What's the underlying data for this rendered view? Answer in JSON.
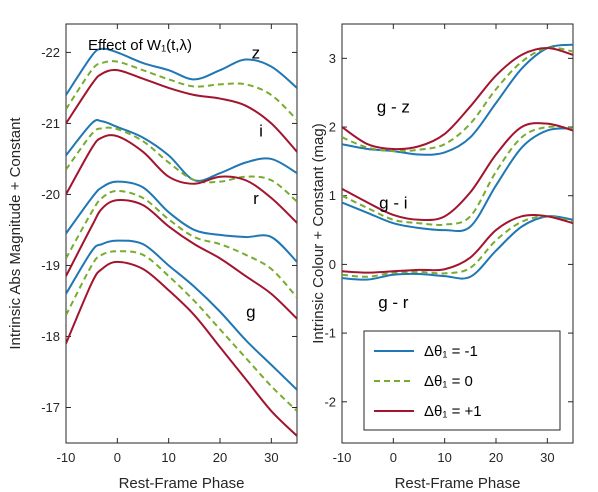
{
  "chart_data": [
    {
      "type": "line",
      "xlabel": "Rest-Frame Phase",
      "ylabel": "Intrinsic Abs Magnitude + Constant",
      "xlim": [
        -10,
        35
      ],
      "ylim": [
        -16.5,
        -22.4
      ],
      "y_reversed": true,
      "xticks": [
        -10,
        0,
        10,
        20,
        30
      ],
      "yticks": [
        -17,
        -18,
        -19,
        -20,
        -21,
        -22
      ],
      "xtick_labels": [
        "-10",
        "0",
        "10",
        "20",
        "30"
      ],
      "ytick_labels": [
        "-17",
        "-18",
        "-19",
        "-20",
        "-21",
        "-22"
      ],
      "annotation": "Effect of W₁(t,λ)",
      "band_labels": [
        {
          "text": "z",
          "x": 27,
          "y": -22.0
        },
        {
          "text": "i",
          "x": 28,
          "y": -20.9
        },
        {
          "text": "r",
          "x": 27,
          "y": -19.95
        },
        {
          "text": "g",
          "x": 26,
          "y": -18.35
        }
      ],
      "x": [
        -10,
        -5,
        -3,
        0,
        5,
        10,
        15,
        20,
        25,
        30,
        35
      ],
      "series": [
        {
          "name": "Δθ₁ = -1",
          "color": "#1f77b4",
          "style": "solid",
          "band": "z",
          "values": [
            -21.4,
            -21.95,
            -22.05,
            -22.0,
            -21.85,
            -21.75,
            -21.62,
            -21.75,
            -21.9,
            -21.8,
            -21.5
          ]
        },
        {
          "name": "Δθ₁ = 0",
          "color": "#77ac30",
          "style": "dashed",
          "band": "z",
          "values": [
            -21.2,
            -21.75,
            -21.85,
            -21.87,
            -21.75,
            -21.62,
            -21.52,
            -21.55,
            -21.55,
            -21.4,
            -21.05
          ]
        },
        {
          "name": "Δθ₁ = +1",
          "color": "#a2142f",
          "style": "solid",
          "band": "z",
          "values": [
            -21.0,
            -21.55,
            -21.7,
            -21.75,
            -21.63,
            -21.5,
            -21.4,
            -21.35,
            -21.25,
            -21.0,
            -20.6
          ]
        },
        {
          "name": "Δθ₁ = -1",
          "color": "#1f77b4",
          "style": "solid",
          "band": "i",
          "values": [
            -20.55,
            -21.0,
            -21.03,
            -20.95,
            -20.8,
            -20.55,
            -20.2,
            -20.3,
            -20.45,
            -20.5,
            -20.3
          ]
        },
        {
          "name": "Δθ₁ = 0",
          "color": "#77ac30",
          "style": "dashed",
          "band": "i",
          "values": [
            -20.35,
            -20.85,
            -20.93,
            -20.92,
            -20.75,
            -20.45,
            -20.2,
            -20.18,
            -20.25,
            -20.2,
            -19.9
          ]
        },
        {
          "name": "Δθ₁ = +1",
          "color": "#a2142f",
          "style": "solid",
          "band": "i",
          "values": [
            -20.0,
            -20.65,
            -20.8,
            -20.82,
            -20.6,
            -20.25,
            -20.15,
            -20.25,
            -20.2,
            -19.95,
            -19.6
          ]
        },
        {
          "name": "Δθ₁ = -1",
          "color": "#1f77b4",
          "style": "solid",
          "band": "r",
          "values": [
            -19.45,
            -19.95,
            -20.1,
            -20.18,
            -20.1,
            -19.75,
            -19.5,
            -19.43,
            -19.4,
            -19.4,
            -19.05
          ]
        },
        {
          "name": "Δθ₁ = 0",
          "color": "#77ac30",
          "style": "dashed",
          "band": "r",
          "values": [
            -19.1,
            -19.75,
            -19.95,
            -20.05,
            -19.95,
            -19.65,
            -19.4,
            -19.3,
            -19.15,
            -18.95,
            -18.55
          ]
        },
        {
          "name": "Δθ₁ = +1",
          "color": "#a2142f",
          "style": "solid",
          "band": "r",
          "values": [
            -18.85,
            -19.55,
            -19.8,
            -19.92,
            -19.85,
            -19.55,
            -19.3,
            -19.1,
            -18.85,
            -18.6,
            -18.25
          ]
        },
        {
          "name": "Δθ₁ = -1",
          "color": "#1f77b4",
          "style": "solid",
          "band": "g",
          "values": [
            -18.6,
            -19.2,
            -19.3,
            -19.35,
            -19.3,
            -19.0,
            -18.7,
            -18.35,
            -17.95,
            -17.6,
            -17.25
          ]
        },
        {
          "name": "Δθ₁ = 0",
          "color": "#77ac30",
          "style": "dashed",
          "band": "g",
          "values": [
            -18.3,
            -19.0,
            -19.15,
            -19.2,
            -19.15,
            -18.85,
            -18.5,
            -18.1,
            -17.7,
            -17.3,
            -16.95
          ]
        },
        {
          "name": "Δθ₁ = +1",
          "color": "#a2142f",
          "style": "solid",
          "band": "g",
          "values": [
            -17.9,
            -18.75,
            -18.95,
            -19.05,
            -18.95,
            -18.65,
            -18.3,
            -17.85,
            -17.4,
            -16.95,
            -16.6
          ]
        }
      ]
    },
    {
      "type": "line",
      "xlabel": "Rest-Frame Phase",
      "ylabel": "Intrinsic Colour + Constant (mag)",
      "xlim": [
        -10,
        35
      ],
      "ylim": [
        -2.6,
        3.5
      ],
      "xticks": [
        -10,
        0,
        10,
        20,
        30
      ],
      "yticks": [
        -2,
        -1,
        0,
        1,
        2,
        3
      ],
      "xtick_labels": [
        "-10",
        "0",
        "10",
        "20",
        "30"
      ],
      "ytick_labels": [
        "-2",
        "-1",
        "0",
        "1",
        "2",
        "3"
      ],
      "band_labels": [
        {
          "text": "g - z",
          "x": 0,
          "y": 2.3
        },
        {
          "text": "g - i",
          "x": 0,
          "y": 0.9
        },
        {
          "text": "g - r",
          "x": 0,
          "y": -0.55
        }
      ],
      "legend_position": "bottom-right",
      "legend": [
        {
          "label": "Δθ₁ = -1",
          "color": "#1f77b4",
          "style": "solid"
        },
        {
          "label": "Δθ₁ = 0",
          "color": "#77ac30",
          "style": "dashed"
        },
        {
          "label": "Δθ₁ = +1",
          "color": "#a2142f",
          "style": "solid"
        }
      ],
      "x": [
        -10,
        -5,
        0,
        5,
        10,
        15,
        20,
        25,
        30,
        35
      ],
      "series": [
        {
          "name": "Δθ₁ = -1",
          "color": "#1f77b4",
          "style": "solid",
          "band": "g - z",
          "values": [
            1.75,
            1.68,
            1.65,
            1.6,
            1.63,
            1.85,
            2.35,
            2.85,
            3.15,
            3.2
          ]
        },
        {
          "name": "Δθ₁ = 0",
          "color": "#77ac30",
          "style": "dashed",
          "band": "g - z",
          "values": [
            1.85,
            1.7,
            1.65,
            1.67,
            1.75,
            2.05,
            2.55,
            2.95,
            3.15,
            3.1
          ]
        },
        {
          "name": "Δθ₁ = +1",
          "color": "#a2142f",
          "style": "solid",
          "band": "g - z",
          "values": [
            2.0,
            1.75,
            1.68,
            1.72,
            1.9,
            2.3,
            2.75,
            3.05,
            3.15,
            3.05
          ]
        },
        {
          "name": "Δθ₁ = -1",
          "color": "#1f77b4",
          "style": "solid",
          "band": "g - i",
          "values": [
            0.9,
            0.75,
            0.6,
            0.53,
            0.5,
            0.55,
            1.15,
            1.7,
            1.95,
            1.98
          ]
        },
        {
          "name": "Δθ₁ = 0",
          "color": "#77ac30",
          "style": "dashed",
          "band": "g - i",
          "values": [
            1.0,
            0.82,
            0.65,
            0.6,
            0.58,
            0.7,
            1.35,
            1.85,
            2.0,
            1.98
          ]
        },
        {
          "name": "Δθ₁ = +1",
          "color": "#a2142f",
          "style": "solid",
          "band": "g - i",
          "values": [
            1.1,
            0.9,
            0.72,
            0.65,
            0.7,
            1.05,
            1.6,
            2.0,
            2.05,
            1.95
          ]
        },
        {
          "name": "Δθ₁ = -1",
          "color": "#1f77b4",
          "style": "solid",
          "band": "g - r",
          "values": [
            -0.2,
            -0.22,
            -0.15,
            -0.14,
            -0.17,
            -0.18,
            0.2,
            0.55,
            0.7,
            0.65
          ]
        },
        {
          "name": "Δθ₁ = 0",
          "color": "#77ac30",
          "style": "dashed",
          "band": "g - r",
          "values": [
            -0.15,
            -0.18,
            -0.12,
            -0.11,
            -0.13,
            -0.05,
            0.35,
            0.62,
            0.7,
            0.62
          ]
        },
        {
          "name": "Δθ₁ = +1",
          "color": "#a2142f",
          "style": "solid",
          "band": "g - r",
          "values": [
            -0.1,
            -0.12,
            -0.1,
            -0.08,
            -0.07,
            0.1,
            0.5,
            0.7,
            0.7,
            0.6
          ]
        }
      ]
    }
  ]
}
